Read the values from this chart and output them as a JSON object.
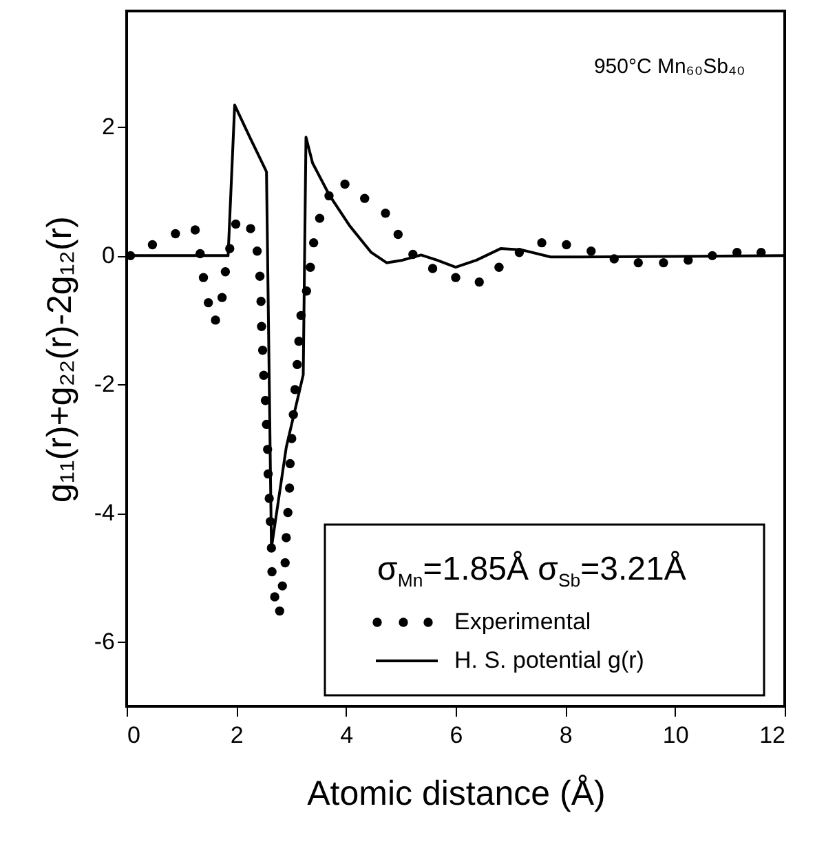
{
  "chart_data": {
    "type": "scatter",
    "xlabel": "Atomic distance (Å)",
    "ylabel": "g₁₁(r)+g₂₂(r)-2g₁₂(r)",
    "legend_title": "σ$_{Mn}$=1.85Å σ$_{Sb}$=3.21Å",
    "annotations": [
      "950°C Mn₆₀Sb₄₀"
    ],
    "xlim": [
      0,
      12
    ],
    "xticks": [
      0,
      2,
      4,
      6,
      8,
      10,
      12
    ],
    "ylim": [
      -7,
      3.8
    ],
    "yticks": [
      -6,
      -4,
      -2,
      0,
      2
    ],
    "grid": false,
    "legend": "bottom right",
    "series": [
      {
        "name": "Experimental",
        "marker": "circle",
        "color": "#000000",
        "x": [
          0.07,
          0.47,
          0.89,
          1.25,
          1.34,
          1.4,
          1.49,
          1.62,
          1.74,
          1.8,
          1.88,
          1.99,
          2.26,
          2.38,
          2.43,
          2.45,
          2.46,
          2.48,
          2.5,
          2.53,
          2.55,
          2.57,
          2.58,
          2.6,
          2.62,
          2.64,
          2.65,
          2.7,
          2.79,
          2.84,
          2.89,
          2.91,
          2.94,
          2.97,
          2.98,
          3.01,
          3.04,
          3.07,
          3.11,
          3.14,
          3.18,
          3.28,
          3.35,
          3.41,
          3.52,
          3.69,
          3.98,
          4.34,
          4.72,
          4.95,
          5.22,
          5.58,
          6.0,
          6.43,
          6.79,
          7.16,
          7.57,
          8.02,
          8.47,
          8.89,
          9.33,
          9.79,
          10.24,
          10.68,
          11.13,
          11.57
        ],
        "values": [
          0,
          0.17,
          0.34,
          0.4,
          0.03,
          -0.34,
          -0.73,
          -1.0,
          -0.65,
          -0.25,
          0.11,
          0.49,
          0.42,
          0.07,
          -0.32,
          -0.71,
          -1.1,
          -1.47,
          -1.86,
          -2.25,
          -2.62,
          -3.01,
          -3.39,
          -3.77,
          -4.13,
          -4.54,
          -4.91,
          -5.3,
          -5.52,
          -5.13,
          -4.77,
          -4.38,
          -3.99,
          -3.61,
          -3.23,
          -2.84,
          -2.47,
          -2.08,
          -1.69,
          -1.33,
          -0.93,
          -0.55,
          -0.18,
          0.2,
          0.58,
          0.93,
          1.11,
          0.89,
          0.66,
          0.33,
          0.02,
          -0.2,
          -0.34,
          -0.41,
          -0.18,
          0.05,
          0.2,
          0.17,
          0.07,
          -0.05,
          -0.11,
          -0.11,
          -0.07,
          0,
          0.05,
          0.05
        ]
      },
      {
        "name": "H. S. potential g(r)",
        "type": "line",
        "marker": "none",
        "line_style": "solid",
        "color": "#000000",
        "x": [
          0,
          1.85,
          1.97,
          2.24,
          2.53,
          2.55,
          2.64,
          2.91,
          3.22,
          3.27,
          3.39,
          3.69,
          4.07,
          4.46,
          4.74,
          5.03,
          5.37,
          5.66,
          6.0,
          6.38,
          6.82,
          7.2,
          7.73,
          8.31,
          12
        ],
        "values": [
          0,
          0,
          2.34,
          1.85,
          1.34,
          1.3,
          -4.54,
          -2.98,
          -1.85,
          1.84,
          1.44,
          0.95,
          0.46,
          0.05,
          -0.11,
          -0.07,
          0.01,
          -0.07,
          -0.18,
          -0.07,
          0.11,
          0.09,
          -0.02,
          -0.02,
          0
        ]
      }
    ]
  }
}
